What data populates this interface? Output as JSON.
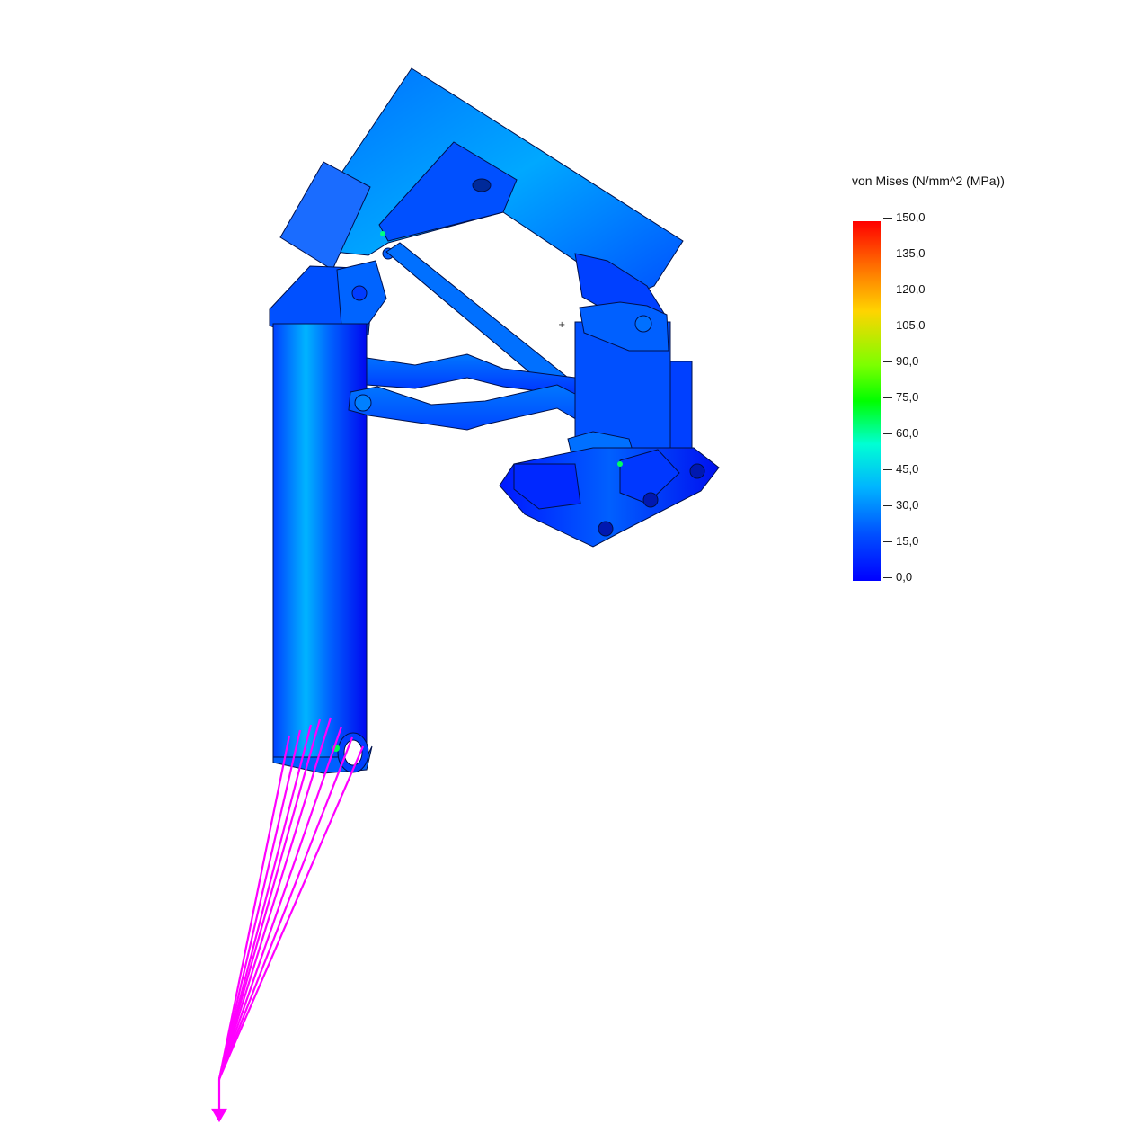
{
  "legend": {
    "title": "von Mises (N/mm^2 (MPa))",
    "min": 0,
    "max": 150,
    "ticks": [
      "150,0",
      "135,0",
      "120,0",
      "105,0",
      "90,0",
      "75,0",
      "60,0",
      "45,0",
      "30,0",
      "15,0",
      "0,0"
    ],
    "colors": [
      "#ff0000",
      "#ff6a00",
      "#ffd400",
      "#b8ff00",
      "#00ff00",
      "#00ffd4",
      "#00d4ff",
      "#0096ff",
      "#0050ff",
      "#0000ff"
    ]
  },
  "load": {
    "color": "#ff00ff",
    "direction": "down"
  }
}
